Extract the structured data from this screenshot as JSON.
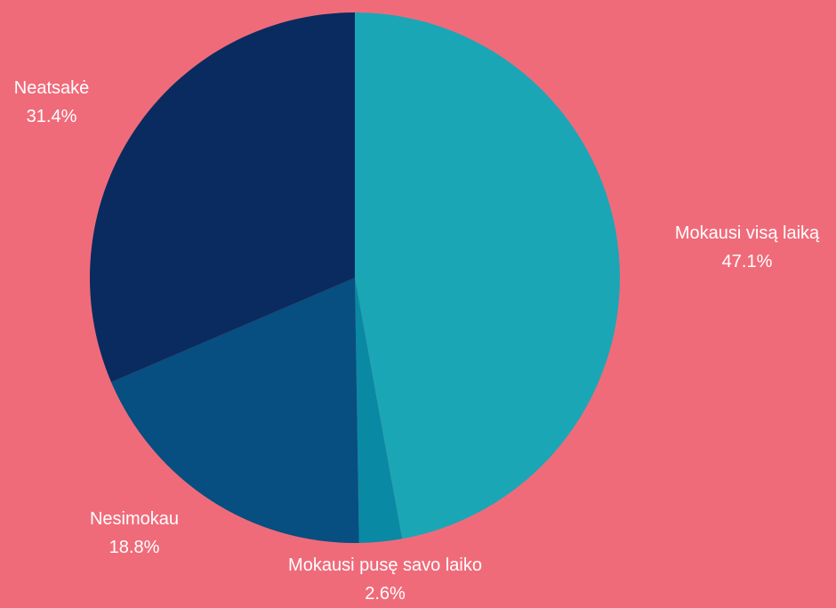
{
  "chart_data": {
    "type": "pie",
    "title": "",
    "background_color": "#F06B7A",
    "slices": [
      {
        "label": "Mokausi visą laiką",
        "value": 47.1,
        "value_label": "47.1%",
        "color": "#1BA6B6"
      },
      {
        "label": "Mokausi pusę savo laiko",
        "value": 2.6,
        "value_label": "2.6%",
        "color": "#0A89A4"
      },
      {
        "label": "Nesimokau",
        "value": 18.8,
        "value_label": "18.8%",
        "color": "#064F80"
      },
      {
        "label": "Neatsakė",
        "value": 31.4,
        "value_label": "31.4%",
        "color": "#0A2B5F"
      }
    ],
    "start_angle_deg": 0,
    "direction": "clockwise"
  }
}
